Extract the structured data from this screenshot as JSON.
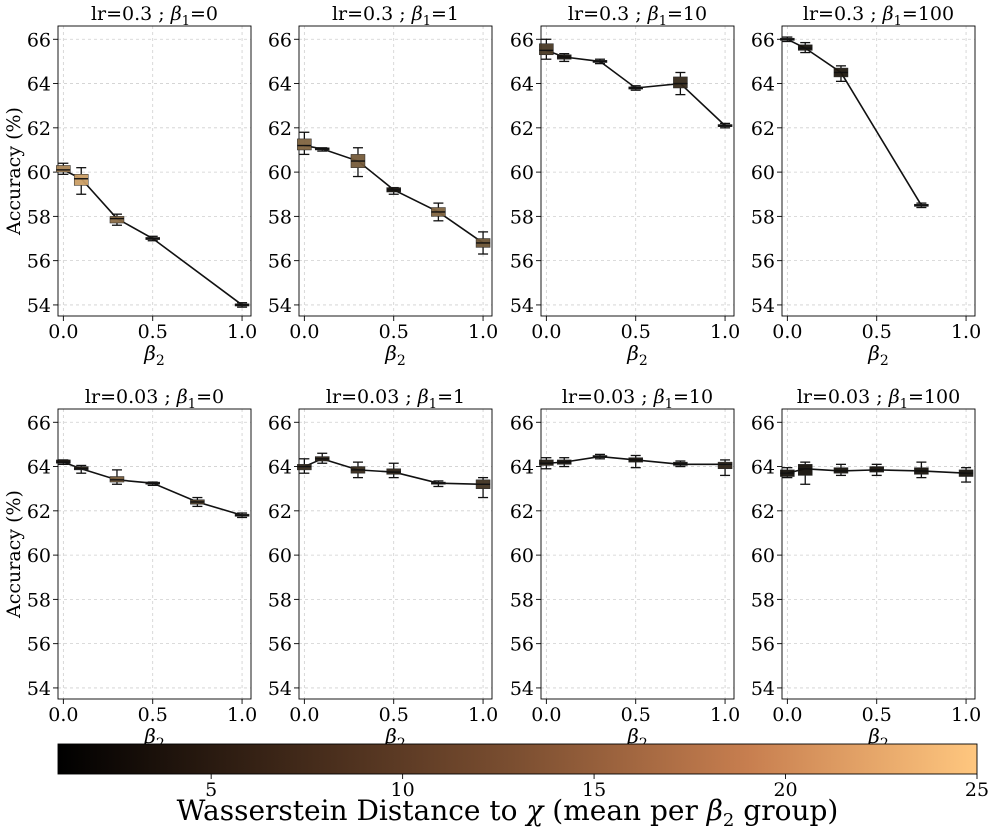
{
  "chart_data": {
    "type": "box",
    "ylabel": "Accuracy (%)",
    "xlabel": "β2",
    "xlabel_base": "β",
    "xlabel_sub": "2",
    "yticks": [
      54,
      56,
      58,
      60,
      62,
      64,
      66
    ],
    "xticks": [
      "0.0",
      "0.5",
      "1.0"
    ],
    "xtick_values": [
      0,
      0.5,
      1
    ],
    "ylim": [
      53.5,
      66.6
    ],
    "xlim": [
      -0.03,
      1.05
    ],
    "grid": true,
    "colorbar": {
      "label": "Wasserstein Distance to χ (mean per β2 group)",
      "label_pre": "Wasserstein Distance to ",
      "label_chi": "χ",
      "label_mid": " (mean per ",
      "label_beta": "β",
      "label_sub": "2",
      "label_post": " group)",
      "ticks": [
        5,
        10,
        15,
        20,
        25
      ],
      "range": [
        1,
        25
      ],
      "colormap": "copper",
      "colors": [
        "#000000",
        "#ffc77f"
      ]
    },
    "panels": [
      {
        "title": "lr=0.3 ; β1=0",
        "lr_text": "lr=0.3 ; ",
        "beta_text": "β",
        "sub_text": "1",
        "val_text": "=0",
        "points": [
          {
            "x": 0,
            "median": 60.1,
            "q1": 60.0,
            "q3": 60.3,
            "lo": 59.9,
            "hi": 60.4,
            "dist": 17
          },
          {
            "x": 0.1,
            "median": 59.7,
            "q1": 59.4,
            "q3": 59.9,
            "lo": 59.0,
            "hi": 60.2,
            "dist": 20
          },
          {
            "x": 0.3,
            "median": 57.9,
            "q1": 57.7,
            "q3": 58.0,
            "lo": 57.6,
            "hi": 58.1,
            "dist": 14
          },
          {
            "x": 0.5,
            "median": 57.0,
            "q1": 56.95,
            "q3": 57.05,
            "lo": 56.9,
            "hi": 57.1,
            "dist": 3
          },
          {
            "x": 1.0,
            "median": 54.0,
            "q1": 53.95,
            "q3": 54.05,
            "lo": 53.9,
            "hi": 54.1,
            "dist": 2
          }
        ]
      },
      {
        "title": "lr=0.3 ; β1=1",
        "lr_text": "lr=0.3 ; ",
        "beta_text": "β",
        "sub_text": "1",
        "val_text": "=1",
        "points": [
          {
            "x": 0,
            "median": 61.2,
            "q1": 61.0,
            "q3": 61.5,
            "lo": 60.8,
            "hi": 61.8,
            "dist": 13
          },
          {
            "x": 0.1,
            "median": 61.05,
            "q1": 61.0,
            "q3": 61.1,
            "lo": 60.95,
            "hi": 61.1,
            "dist": 2
          },
          {
            "x": 0.3,
            "median": 60.5,
            "q1": 60.2,
            "q3": 60.8,
            "lo": 59.8,
            "hi": 61.1,
            "dist": 12
          },
          {
            "x": 0.5,
            "median": 59.2,
            "q1": 59.1,
            "q3": 59.3,
            "lo": 59.0,
            "hi": 59.3,
            "dist": 3
          },
          {
            "x": 0.75,
            "median": 58.2,
            "q1": 58.0,
            "q3": 58.4,
            "lo": 57.8,
            "hi": 58.6,
            "dist": 13
          },
          {
            "x": 1.0,
            "median": 56.8,
            "q1": 56.6,
            "q3": 57.0,
            "lo": 56.3,
            "hi": 57.3,
            "dist": 11
          }
        ]
      },
      {
        "title": "lr=0.3 ; β1=10",
        "lr_text": "lr=0.3 ; ",
        "beta_text": "β",
        "sub_text": "1",
        "val_text": "=10",
        "points": [
          {
            "x": 0,
            "median": 65.5,
            "q1": 65.3,
            "q3": 65.8,
            "lo": 65.1,
            "hi": 66.0,
            "dist": 8
          },
          {
            "x": 0.1,
            "median": 65.2,
            "q1": 65.1,
            "q3": 65.3,
            "lo": 65.0,
            "hi": 65.35,
            "dist": 3
          },
          {
            "x": 0.3,
            "median": 65.0,
            "q1": 64.95,
            "q3": 65.05,
            "lo": 64.9,
            "hi": 65.1,
            "dist": 2
          },
          {
            "x": 0.5,
            "median": 63.8,
            "q1": 63.75,
            "q3": 63.85,
            "lo": 63.7,
            "hi": 63.9,
            "dist": 1
          },
          {
            "x": 0.75,
            "median": 64.0,
            "q1": 63.8,
            "q3": 64.3,
            "lo": 63.5,
            "hi": 64.5,
            "dist": 6
          },
          {
            "x": 1.0,
            "median": 62.1,
            "q1": 62.05,
            "q3": 62.15,
            "lo": 62.0,
            "hi": 62.2,
            "dist": 1
          }
        ]
      },
      {
        "title": "lr=0.3 ; β1=100",
        "lr_text": "lr=0.3 ; ",
        "beta_text": "β",
        "sub_text": "1",
        "val_text": "=100",
        "points": [
          {
            "x": 0,
            "median": 66.0,
            "q1": 65.95,
            "q3": 66.05,
            "lo": 65.9,
            "hi": 66.1,
            "dist": 2
          },
          {
            "x": 0.1,
            "median": 65.6,
            "q1": 65.5,
            "q3": 65.75,
            "lo": 65.4,
            "hi": 65.85,
            "dist": 3
          },
          {
            "x": 0.3,
            "median": 64.5,
            "q1": 64.3,
            "q3": 64.7,
            "lo": 64.1,
            "hi": 64.8,
            "dist": 4
          },
          {
            "x": 0.75,
            "median": 58.5,
            "q1": 58.45,
            "q3": 58.55,
            "lo": 58.4,
            "hi": 58.6,
            "dist": 1
          }
        ]
      },
      {
        "title": "lr=0.03 ; β1=0",
        "lr_text": "lr=0.03 ; ",
        "beta_text": "β",
        "sub_text": "1",
        "val_text": "=0",
        "points": [
          {
            "x": 0,
            "median": 64.2,
            "q1": 64.15,
            "q3": 64.3,
            "lo": 64.1,
            "hi": 64.3,
            "dist": 3
          },
          {
            "x": 0.1,
            "median": 63.9,
            "q1": 63.85,
            "q3": 64.0,
            "lo": 63.7,
            "hi": 64.05,
            "dist": 4
          },
          {
            "x": 0.3,
            "median": 63.4,
            "q1": 63.3,
            "q3": 63.55,
            "lo": 63.2,
            "hi": 63.85,
            "dist": 12
          },
          {
            "x": 0.5,
            "median": 63.25,
            "q1": 63.2,
            "q3": 63.3,
            "lo": 63.15,
            "hi": 63.3,
            "dist": 3
          },
          {
            "x": 0.75,
            "median": 62.4,
            "q1": 62.3,
            "q3": 62.5,
            "lo": 62.2,
            "hi": 62.6,
            "dist": 8
          },
          {
            "x": 1.0,
            "median": 61.8,
            "q1": 61.75,
            "q3": 61.85,
            "lo": 61.7,
            "hi": 61.9,
            "dist": 3
          }
        ]
      },
      {
        "title": "lr=0.03 ; β1=1",
        "lr_text": "lr=0.03 ; ",
        "beta_text": "β",
        "sub_text": "1",
        "val_text": "=1",
        "points": [
          {
            "x": 0,
            "median": 64.0,
            "q1": 63.85,
            "q3": 64.1,
            "lo": 63.7,
            "hi": 64.35,
            "dist": 6
          },
          {
            "x": 0.1,
            "median": 64.35,
            "q1": 64.25,
            "q3": 64.45,
            "lo": 64.15,
            "hi": 64.6,
            "dist": 5
          },
          {
            "x": 0.3,
            "median": 63.85,
            "q1": 63.7,
            "q3": 64.0,
            "lo": 63.5,
            "hi": 64.2,
            "dist": 6
          },
          {
            "x": 0.5,
            "median": 63.75,
            "q1": 63.65,
            "q3": 63.9,
            "lo": 63.5,
            "hi": 64.15,
            "dist": 5
          },
          {
            "x": 0.75,
            "median": 63.25,
            "q1": 63.2,
            "q3": 63.3,
            "lo": 63.1,
            "hi": 63.35,
            "dist": 3
          },
          {
            "x": 1.0,
            "median": 63.2,
            "q1": 63.0,
            "q3": 63.4,
            "lo": 62.6,
            "hi": 63.5,
            "dist": 7
          }
        ]
      },
      {
        "title": "lr=0.03 ; β1=10",
        "lr_text": "lr=0.03 ; ",
        "beta_text": "β",
        "sub_text": "1",
        "val_text": "=10",
        "points": [
          {
            "x": 0,
            "median": 64.15,
            "q1": 64.05,
            "q3": 64.3,
            "lo": 63.9,
            "hi": 64.4,
            "dist": 4
          },
          {
            "x": 0.1,
            "median": 64.2,
            "q1": 64.1,
            "q3": 64.3,
            "lo": 64.0,
            "hi": 64.4,
            "dist": 3
          },
          {
            "x": 0.3,
            "median": 64.45,
            "q1": 64.4,
            "q3": 64.5,
            "lo": 64.35,
            "hi": 64.55,
            "dist": 2
          },
          {
            "x": 0.5,
            "median": 64.3,
            "q1": 64.2,
            "q3": 64.4,
            "lo": 63.95,
            "hi": 64.5,
            "dist": 3
          },
          {
            "x": 0.75,
            "median": 64.1,
            "q1": 64.05,
            "q3": 64.2,
            "lo": 64.0,
            "hi": 64.25,
            "dist": 2
          },
          {
            "x": 1.0,
            "median": 64.1,
            "q1": 63.9,
            "q3": 64.2,
            "lo": 63.6,
            "hi": 64.3,
            "dist": 5
          }
        ]
      },
      {
        "title": "lr=0.03 ; β1=100",
        "lr_text": "lr=0.03 ; ",
        "beta_text": "β",
        "sub_text": "1",
        "val_text": "=100",
        "points": [
          {
            "x": 0,
            "median": 63.7,
            "q1": 63.55,
            "q3": 63.85,
            "lo": 63.5,
            "hi": 63.95,
            "dist": 3
          },
          {
            "x": 0.1,
            "median": 63.9,
            "q1": 63.6,
            "q3": 64.1,
            "lo": 63.2,
            "hi": 64.2,
            "dist": 3
          },
          {
            "x": 0.3,
            "median": 63.8,
            "q1": 63.7,
            "q3": 63.95,
            "lo": 63.6,
            "hi": 64.1,
            "dist": 3
          },
          {
            "x": 0.5,
            "median": 63.85,
            "q1": 63.75,
            "q3": 64.0,
            "lo": 63.6,
            "hi": 64.1,
            "dist": 3
          },
          {
            "x": 0.75,
            "median": 63.8,
            "q1": 63.65,
            "q3": 63.95,
            "lo": 63.5,
            "hi": 64.2,
            "dist": 3
          },
          {
            "x": 1.0,
            "median": 63.7,
            "q1": 63.55,
            "q3": 63.85,
            "lo": 63.3,
            "hi": 63.95,
            "dist": 3
          }
        ]
      }
    ]
  }
}
